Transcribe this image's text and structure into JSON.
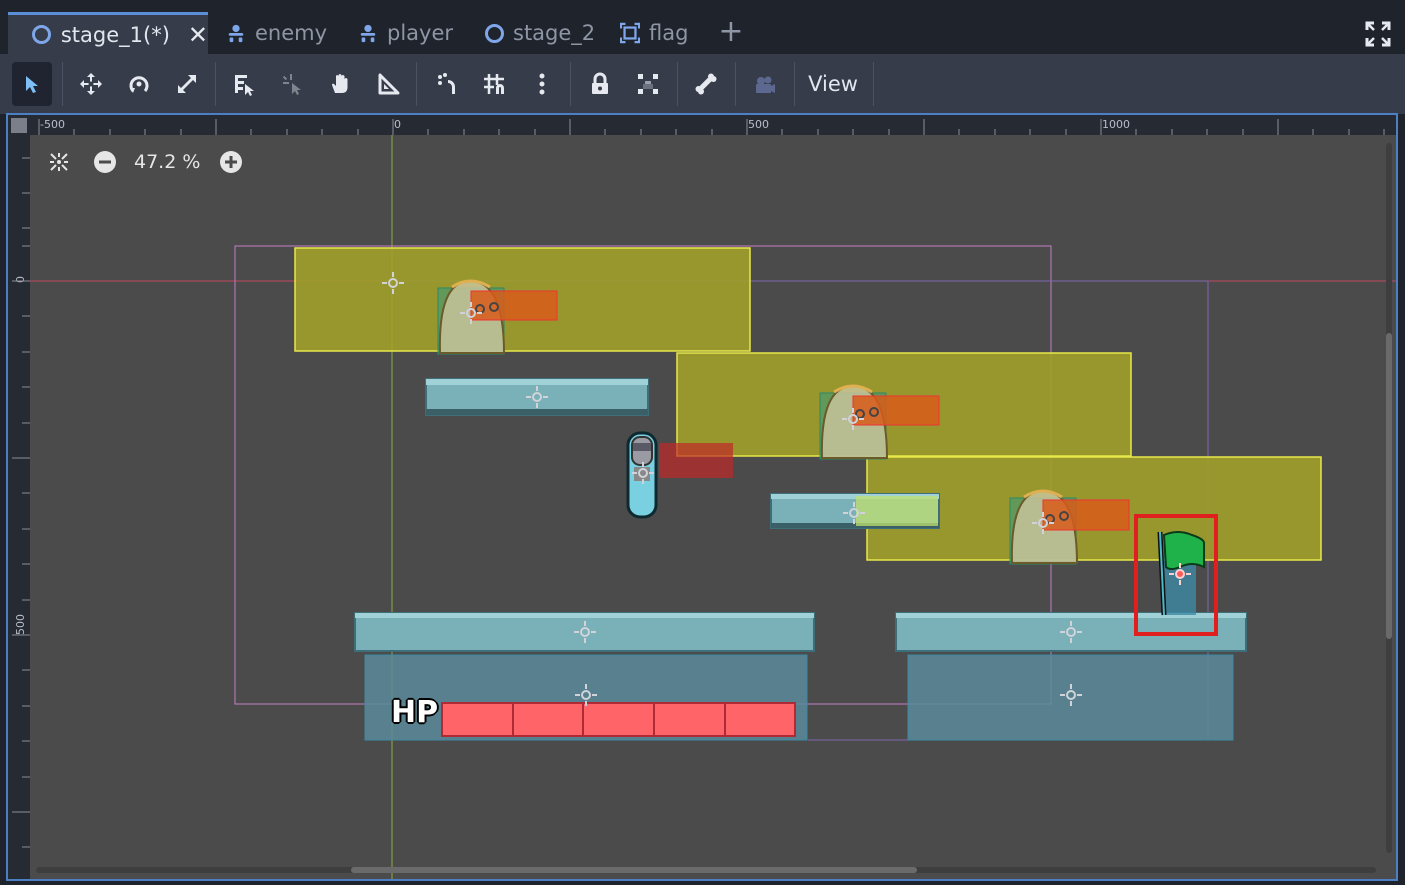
{
  "tabs": [
    {
      "label": "stage_1(*)",
      "icon": "scene-circle-icon",
      "active": true,
      "closable": true
    },
    {
      "label": "enemy",
      "icon": "node-tree-icon"
    },
    {
      "label": "player",
      "icon": "node-tree-icon"
    },
    {
      "label": "stage_2",
      "icon": "scene-circle-icon"
    },
    {
      "label": "flag",
      "icon": "frame-icon"
    }
  ],
  "toolbar": {
    "tools": [
      "select-tool",
      "move-tool",
      "rotate-tool",
      "scale-tool",
      "list-select-tool",
      "pivot-tool",
      "pan-tool",
      "ruler-tool",
      "smart-snap-toggle",
      "grid-snap-toggle",
      "snap-options-menu",
      "lock-toggle",
      "group-toggle",
      "skeleton-tool",
      "camera-override-tool"
    ],
    "view_label": "View"
  },
  "viewport": {
    "zoom": "47.2 %",
    "ruler_top": [
      "-500",
      "0",
      "500",
      "1000"
    ],
    "ruler_left": [
      "0",
      "500"
    ],
    "hud_text": "HP",
    "hp_segments": 5
  },
  "colors": {
    "accent": "#5a8fd8",
    "canvas_bg": "#4b4b4b",
    "area_yellow": "#a0a02a",
    "platform_teal": "#7ab0b8",
    "selection_red": "#e01f1f",
    "hp_bar": "#ff6469",
    "flag_green": "#1fb24a"
  }
}
